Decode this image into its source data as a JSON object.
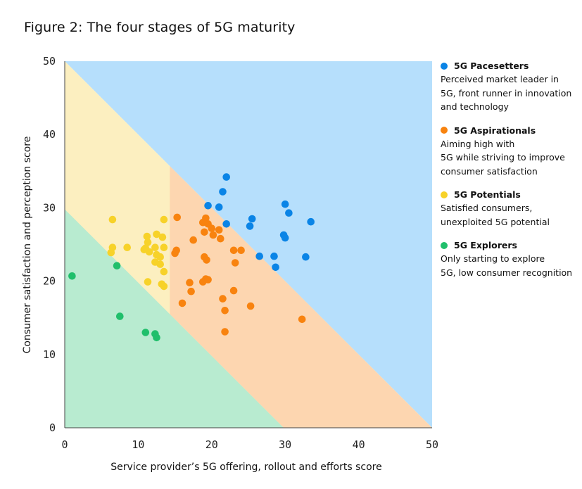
{
  "title": "Figure 2: The four stages of 5G maturity",
  "colors": {
    "pacesetters": "#0a84e6",
    "aspirationals": "#f8830f",
    "potentials": "#f7d229",
    "explorers": "#20bf6b",
    "zone_blue": "#b6dffc",
    "zone_orange": "#fdd6b0",
    "zone_yellow": "#fcefc0",
    "zone_green": "#b8ebd0"
  },
  "legend": [
    {
      "key": "pacesetters",
      "name": "5G Pacesetters",
      "color": "#0a84e6",
      "lines": [
        "Perceived market leader in",
        "5G, front runner in innovation",
        "and technology"
      ]
    },
    {
      "key": "aspirationals",
      "name": "5G Aspirationals",
      "color": "#f8830f",
      "lines": [
        "Aiming high with",
        "5G while striving to improve",
        "consumer satisfaction"
      ]
    },
    {
      "key": "potentials",
      "name": "5G Potentials",
      "color": "#f7d229",
      "lines": [
        "Satisfied consumers,",
        "unexploited 5G potential"
      ]
    },
    {
      "key": "explorers",
      "name": "5G Explorers",
      "color": "#20bf6b",
      "lines": [
        "Only starting to explore",
        "5G, low consumer recognition"
      ]
    }
  ],
  "chart_data": {
    "type": "scatter",
    "title": "Figure 2: The four stages of 5G maturity",
    "xlabel": "Service provider’s 5G offering, rollout and efforts score",
    "ylabel": "Consumer satisfaction and perception score",
    "xlim": [
      0,
      50
    ],
    "ylim": [
      0,
      50
    ],
    "x_ticks": [
      "0",
      "10",
      "20",
      "30",
      "40",
      "50"
    ],
    "y_ticks": [
      "0",
      "10",
      "20",
      "30",
      "40",
      "50"
    ],
    "grid": false,
    "legend_position": "right",
    "series": [
      {
        "name": "5G Pacesetters",
        "color": "#0a84e6",
        "points": [
          [
            22,
            34.2
          ],
          [
            21.5,
            32.2
          ],
          [
            19.5,
            30.3
          ],
          [
            21,
            30.1
          ],
          [
            22,
            27.8
          ],
          [
            25.5,
            28.5
          ],
          [
            25.2,
            27.5
          ],
          [
            30,
            30.5
          ],
          [
            30.5,
            29.3
          ],
          [
            33.5,
            28.1
          ],
          [
            29.8,
            26.3
          ],
          [
            30,
            25.9
          ],
          [
            26.5,
            23.4
          ],
          [
            28.5,
            23.4
          ],
          [
            28.7,
            21.9
          ],
          [
            32.8,
            23.3
          ]
        ]
      },
      {
        "name": "5G Aspirationals",
        "color": "#f8830f",
        "points": [
          [
            15.3,
            28.7
          ],
          [
            19.2,
            28.6
          ],
          [
            18.8,
            28
          ],
          [
            19.5,
            27.8
          ],
          [
            20,
            27.2
          ],
          [
            21,
            27
          ],
          [
            19,
            26.7
          ],
          [
            20.2,
            26.3
          ],
          [
            21.2,
            25.8
          ],
          [
            17.5,
            25.6
          ],
          [
            15.2,
            24.2
          ],
          [
            15,
            23.8
          ],
          [
            23,
            24.2
          ],
          [
            24,
            24.2
          ],
          [
            19,
            23.3
          ],
          [
            19.3,
            22.9
          ],
          [
            23.2,
            22.5
          ],
          [
            17,
            19.8
          ],
          [
            18.8,
            19.9
          ],
          [
            19.2,
            20.3
          ],
          [
            19.5,
            20.2
          ],
          [
            17.2,
            18.6
          ],
          [
            23,
            18.7
          ],
          [
            21.5,
            17.6
          ],
          [
            16,
            17
          ],
          [
            21.8,
            16
          ],
          [
            25.3,
            16.6
          ],
          [
            21.8,
            13.1
          ],
          [
            32.3,
            14.8
          ]
        ]
      },
      {
        "name": "5G Potentials",
        "color": "#f7d229",
        "points": [
          [
            6.5,
            28.4
          ],
          [
            13.5,
            28.4
          ],
          [
            12.5,
            26.4
          ],
          [
            11.2,
            26.1
          ],
          [
            13.3,
            26
          ],
          [
            11.3,
            25.3
          ],
          [
            12.3,
            24.6
          ],
          [
            13.5,
            24.6
          ],
          [
            6.5,
            24.6
          ],
          [
            8.5,
            24.6
          ],
          [
            11,
            24.5
          ],
          [
            10.8,
            24.3
          ],
          [
            6.3,
            23.9
          ],
          [
            11.5,
            24
          ],
          [
            12.5,
            23.6
          ],
          [
            12.3,
            22.6
          ],
          [
            13,
            23.3
          ],
          [
            13,
            22.3
          ],
          [
            13.5,
            21.3
          ],
          [
            11.3,
            19.9
          ],
          [
            13.2,
            19.6
          ],
          [
            13.5,
            19.3
          ]
        ]
      },
      {
        "name": "5G Explorers",
        "color": "#20bf6b",
        "points": [
          [
            1,
            20.7
          ],
          [
            7.1,
            22.1
          ],
          [
            7.5,
            15.2
          ],
          [
            11,
            13
          ],
          [
            12.3,
            12.8
          ],
          [
            12.5,
            12.3
          ]
        ]
      }
    ]
  }
}
